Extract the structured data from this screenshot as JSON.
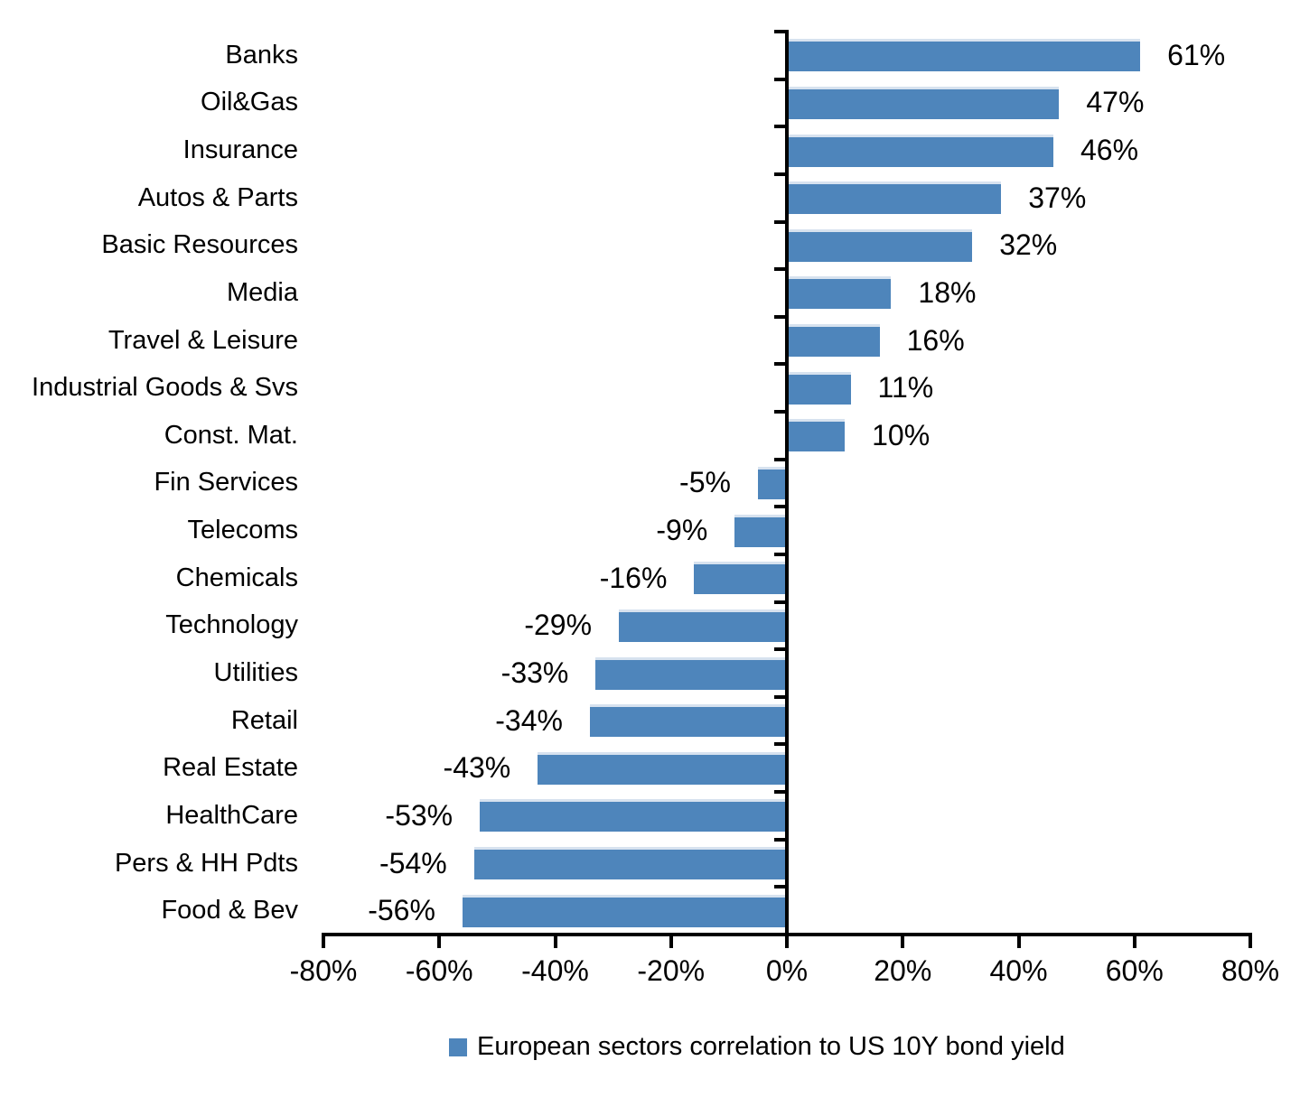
{
  "colors": {
    "bar": "#4e85bb",
    "bar_top_edge": "#d7e2ef",
    "axis": "#000000",
    "text": "#000000",
    "background": "#ffffff"
  },
  "legend": {
    "label": "European sectors correlation to US 10Y bond yield",
    "swatch_color": "#4e85bb"
  },
  "chart_data": {
    "type": "bar",
    "orientation": "horizontal",
    "categories": [
      "Banks",
      "Oil&Gas",
      "Insurance",
      "Autos & Parts",
      "Basic Resources",
      "Media",
      "Travel & Leisure",
      "Industrial Goods & Svs",
      "Const. Mat.",
      "Fin Services",
      "Telecoms",
      "Chemicals",
      "Technology",
      "Utilities",
      "Retail",
      "Real Estate",
      "HealthCare",
      "Pers & HH Pdts",
      "Food & Bev"
    ],
    "values": [
      61,
      47,
      46,
      37,
      32,
      18,
      16,
      11,
      10,
      -5,
      -9,
      -16,
      -29,
      -33,
      -34,
      -43,
      -53,
      -54,
      -56
    ],
    "value_labels": [
      "61%",
      "47%",
      "46%",
      "37%",
      "32%",
      "18%",
      "16%",
      "11%",
      "10%",
      "-5%",
      "-9%",
      "-16%",
      "-29%",
      "-33%",
      "-34%",
      "-43%",
      "-53%",
      "-54%",
      "-56%"
    ],
    "series": [
      {
        "name": "European sectors correlation to US 10Y bond yield",
        "values": [
          61,
          47,
          46,
          37,
          32,
          18,
          16,
          11,
          10,
          -5,
          -9,
          -16,
          -29,
          -33,
          -34,
          -43,
          -53,
          -54,
          -56
        ]
      }
    ],
    "xlim": [
      -80,
      80
    ],
    "x_ticks": [
      -80,
      -60,
      -40,
      -20,
      0,
      20,
      40,
      60,
      80
    ],
    "x_tick_labels": [
      "-80%",
      "-60%",
      "-40%",
      "-20%",
      "0%",
      "20%",
      "40%",
      "60%",
      "80%"
    ],
    "grid": false,
    "data_labels": "outside-end",
    "legend_position": "bottom"
  }
}
